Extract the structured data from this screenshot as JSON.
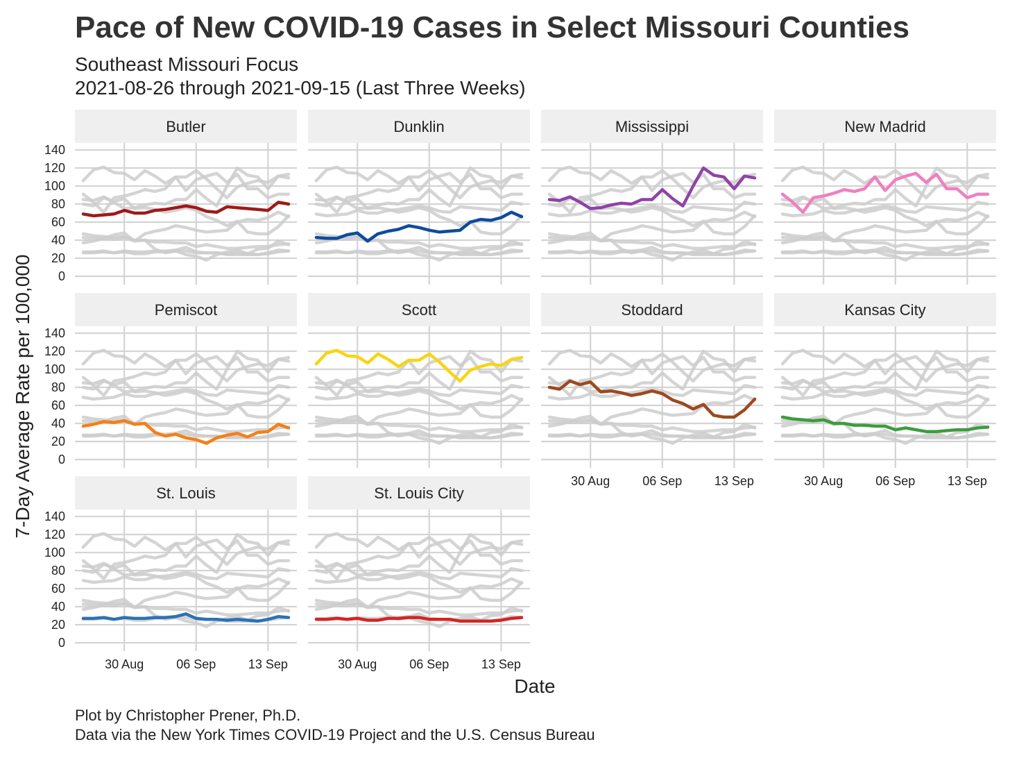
{
  "chart_data": {
    "type": "line",
    "title": "Pace of New COVID-19 Cases in Select Missouri Counties",
    "subtitle_lines": [
      "Southeast Missouri Focus",
      "2021-08-26 through 2021-09-15 (Last Three Weeks)"
    ],
    "xlabel": "Date",
    "ylabel": "7-Day Average Rate per 100,000",
    "caption_lines": [
      "Plot by Christopher Prener, Ph.D.",
      "Data via the New York Times COVID-19 Project and the U.S. Census Bureau"
    ],
    "x": [
      "2021-08-26",
      "2021-08-27",
      "2021-08-28",
      "2021-08-29",
      "2021-08-30",
      "2021-08-31",
      "2021-09-01",
      "2021-09-02",
      "2021-09-03",
      "2021-09-04",
      "2021-09-05",
      "2021-09-06",
      "2021-09-07",
      "2021-09-08",
      "2021-09-09",
      "2021-09-10",
      "2021-09-11",
      "2021-09-12",
      "2021-09-13",
      "2021-09-14",
      "2021-09-15"
    ],
    "x_ticks": [
      {
        "date": "2021-08-30",
        "label": "30 Aug"
      },
      {
        "date": "2021-09-06",
        "label": "06 Sep"
      },
      {
        "date": "2021-09-13",
        "label": "13 Sep"
      }
    ],
    "ylim": [
      0,
      140
    ],
    "y_ticks": [
      0,
      20,
      40,
      60,
      80,
      100,
      120,
      140
    ],
    "grid": true,
    "background_color": "#cccccc",
    "series": [
      {
        "name": "Butler",
        "color": "#9e1a1a",
        "values": [
          69,
          67,
          68,
          69,
          73,
          70,
          70,
          73,
          74,
          76,
          78,
          76,
          72,
          71,
          77,
          76,
          75,
          74,
          73,
          82,
          80
        ]
      },
      {
        "name": "Dunklin",
        "color": "#0d4c9c",
        "values": [
          43,
          42,
          42,
          46,
          48,
          39,
          47,
          50,
          52,
          56,
          54,
          51,
          49,
          50,
          51,
          60,
          63,
          62,
          65,
          71,
          66
        ]
      },
      {
        "name": "Mississippi",
        "color": "#8e44a8",
        "values": [
          85,
          84,
          88,
          82,
          75,
          76,
          79,
          81,
          80,
          85,
          85,
          96,
          86,
          78,
          100,
          120,
          112,
          110,
          97,
          111,
          109
        ]
      },
      {
        "name": "New Madrid",
        "color": "#f07fc0",
        "values": [
          91,
          82,
          71,
          87,
          89,
          92,
          96,
          94,
          97,
          110,
          95,
          107,
          111,
          114,
          104,
          113,
          97,
          97,
          87,
          91,
          91
        ]
      },
      {
        "name": "Pemiscot",
        "color": "#f57f17",
        "values": [
          37,
          39,
          42,
          41,
          43,
          39,
          40,
          30,
          26,
          28,
          24,
          22,
          18,
          24,
          27,
          29,
          25,
          30,
          31,
          39,
          35
        ]
      },
      {
        "name": "Scott",
        "color": "#f7d514",
        "values": [
          106,
          118,
          121,
          115,
          114,
          107,
          117,
          111,
          103,
          110,
          110,
          117,
          108,
          97,
          87,
          99,
          103,
          106,
          104,
          111,
          113
        ]
      },
      {
        "name": "Stoddard",
        "color": "#9b4a1f",
        "values": [
          80,
          78,
          87,
          83,
          86,
          75,
          76,
          74,
          71,
          73,
          76,
          73,
          66,
          62,
          56,
          61,
          49,
          47,
          47,
          55,
          67
        ]
      },
      {
        "name": "Kansas City",
        "color": "#3d9c3d",
        "values": [
          47,
          45,
          44,
          43,
          44,
          40,
          40,
          38,
          38,
          37,
          37,
          33,
          35,
          33,
          31,
          31,
          32,
          33,
          33,
          35,
          36
        ]
      },
      {
        "name": "St. Louis",
        "color": "#2b72b8",
        "values": [
          27,
          27,
          28,
          26,
          28,
          27,
          27,
          28,
          28,
          29,
          32,
          27,
          26,
          26,
          25,
          26,
          25,
          24,
          26,
          29,
          28
        ]
      },
      {
        "name": "St. Louis City",
        "color": "#d62424",
        "values": [
          26,
          26,
          27,
          26,
          27,
          25,
          25,
          27,
          27,
          28,
          28,
          26,
          26,
          26,
          24,
          24,
          24,
          24,
          25,
          27,
          28
        ]
      }
    ]
  }
}
